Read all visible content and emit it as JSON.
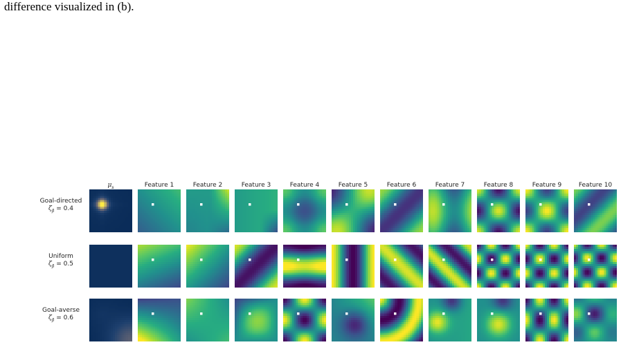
{
  "caption": "difference visualized in (b).",
  "columns": [
    "μ_s",
    "Feature 1",
    "Feature 2",
    "Feature 3",
    "Feature 4",
    "Feature 5",
    "Feature 6",
    "Feature 7",
    "Feature 8",
    "Feature 9",
    "Feature 10"
  ],
  "column_titles": {
    "mu": "μ",
    "mu_sub": "s"
  },
  "rows": [
    {
      "label": "Goal-directed",
      "zeta_text": "ζ",
      "zeta_sub": "β",
      "zeta_value": "= 0.4"
    },
    {
      "label": "Uniform",
      "zeta_text": "ζ",
      "zeta_sub": "β",
      "zeta_value": "= 0.5"
    },
    {
      "label": "Goal-averse",
      "zeta_text": "ζ",
      "zeta_sub": "β",
      "zeta_value": "= 0.6"
    }
  ],
  "colormap": "viridis",
  "mu_colormap": "cividis"
}
